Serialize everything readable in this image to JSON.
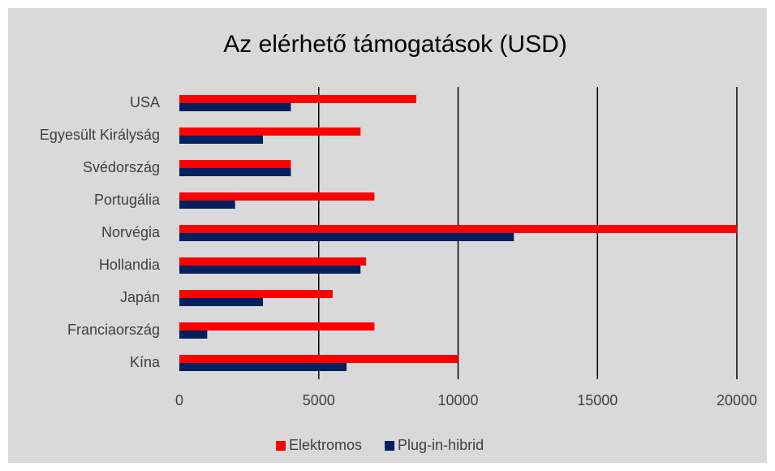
{
  "chart_data": {
    "type": "hbar",
    "title": "Az elérhető támogatások (USD)",
    "categories": [
      "USA",
      "Egyesült Királyság",
      "Svédország",
      "Portugália",
      "Norvégia",
      "Hollandia",
      "Japán",
      "Franciaország",
      "Kína"
    ],
    "series": [
      {
        "name": "Elektromos",
        "color": "#ff0000",
        "values": [
          8500,
          6500,
          4000,
          7000,
          20000,
          6700,
          5500,
          7000,
          10000
        ]
      },
      {
        "name": "Plug-in-hibrid",
        "color": "#002060",
        "values": [
          4000,
          3000,
          4000,
          2000,
          12000,
          6500,
          3000,
          1000,
          6000
        ]
      }
    ],
    "xlim": [
      0,
      20000
    ],
    "xticks": [
      0,
      5000,
      10000,
      15000,
      20000
    ],
    "grid": true,
    "legend": "bottom"
  }
}
